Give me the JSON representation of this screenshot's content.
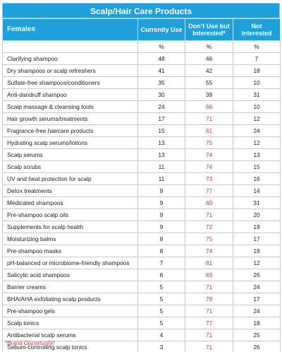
{
  "title": "Scalp/Hair Care Products",
  "headers": {
    "group": "Females",
    "currently_use": "Currently Use",
    "interested": "Don’t Use but Interested*",
    "not_interested": "Not Interested"
  },
  "units": {
    "col1": "",
    "col2": "%",
    "col3": "%",
    "col4": "%"
  },
  "rows": [
    {
      "name": "Clarifying shampoo",
      "use": "48",
      "interested": "46",
      "not": "7"
    },
    {
      "name": "Dry shampoos or scalp refreshers",
      "use": "41",
      "interested": "42",
      "not": "18"
    },
    {
      "name": "Sulfate-free shampoos/conditioners",
      "use": "35",
      "interested": "55",
      "not": "10"
    },
    {
      "name": "Anti-dandruff shampoo",
      "use": "30",
      "interested": "39",
      "not": "31"
    },
    {
      "name": "Scalp massage & cleansing tools",
      "use": "24",
      "interested": "66",
      "not": "10"
    },
    {
      "name": "Hair growth serums/treatments",
      "use": "17",
      "interested": "71",
      "not": "12"
    },
    {
      "name": "Fragrance-free haircare products",
      "use": "15",
      "interested": "61",
      "not": "24"
    },
    {
      "name": "Hydrating scalp serums/lotions",
      "use": "13",
      "interested": "75",
      "not": "12"
    },
    {
      "name": "Scalp serums",
      "use": "13",
      "interested": "74",
      "not": "13"
    },
    {
      "name": "Scalp scrubs",
      "use": "11",
      "interested": "74",
      "not": "15"
    },
    {
      "name": "UV and heat protection for scalp",
      "use": "11",
      "interested": "73",
      "not": "16"
    },
    {
      "name": "Detox treatments",
      "use": "9",
      "interested": "77",
      "not": "14"
    },
    {
      "name": "Medicated shampoos",
      "use": "9",
      "interested": "60",
      "not": "31"
    },
    {
      "name": "Pre-shampoo scalp oils",
      "use": "9",
      "interested": "71",
      "not": "20"
    },
    {
      "name": "Supplements for scalp health",
      "use": "9",
      "interested": "72",
      "not": "19"
    },
    {
      "name": "Moisturizing balms",
      "use": "8",
      "interested": "75",
      "not": "17"
    },
    {
      "name": "Pre-shampoo masks",
      "use": "8",
      "interested": "74",
      "not": "18"
    },
    {
      "name": "pH-balanced or microbiome-friendly shampoos",
      "use": "7",
      "interested": "81",
      "not": "12"
    },
    {
      "name": "Salicylic acid shampoos",
      "use": "6",
      "interested": "69",
      "not": "26"
    },
    {
      "name": "Barrier creams",
      "use": "5",
      "interested": "71",
      "not": "24"
    },
    {
      "name": "BHA/AHA exfoliating scalp products",
      "use": "5",
      "interested": "78",
      "not": "17"
    },
    {
      "name": "Pre-shampoo gels",
      "use": "5",
      "interested": "71",
      "not": "24"
    },
    {
      "name": "Scalp tonics",
      "use": "5",
      "interested": "77",
      "not": "18"
    },
    {
      "name": "Antibacterial scalp serums",
      "use": "4",
      "interested": "71",
      "not": "25"
    },
    {
      "name": "Sebum-controlling scalp tonics",
      "use": "3",
      "interested": "71",
      "not": "26"
    }
  ],
  "footnote": "*Brand Opportunity!",
  "colors": {
    "header_bg": "#1ea0dc",
    "highlight_red": "#d63b3b"
  },
  "highlight_threshold": 60
}
